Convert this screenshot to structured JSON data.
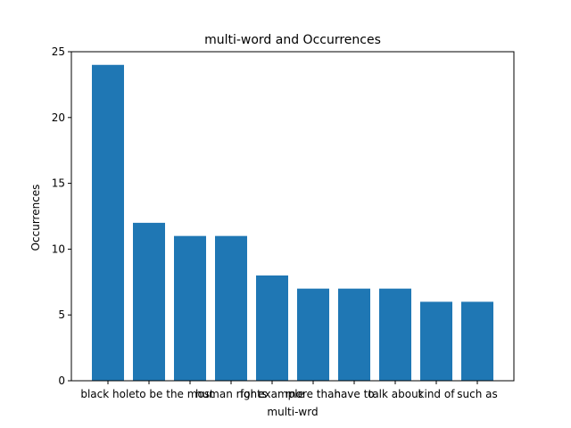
{
  "chart_data": {
    "type": "bar",
    "title": "multi-word and Occurrences",
    "xlabel": "multi-wrd",
    "ylabel": "Occurrences",
    "categories": [
      "black hole",
      "to be",
      "the most",
      "human rights",
      "for example",
      "more than",
      "have to",
      "talk about",
      "kind of",
      "such as"
    ],
    "values": [
      24,
      12,
      11,
      11,
      8,
      7,
      7,
      7,
      6,
      6
    ],
    "ylim": [
      0,
      25
    ],
    "yticks": [
      0,
      5,
      10,
      15,
      20,
      25
    ],
    "grid": false,
    "bar_color": "#1f77b4",
    "axis_color": "#000000"
  }
}
